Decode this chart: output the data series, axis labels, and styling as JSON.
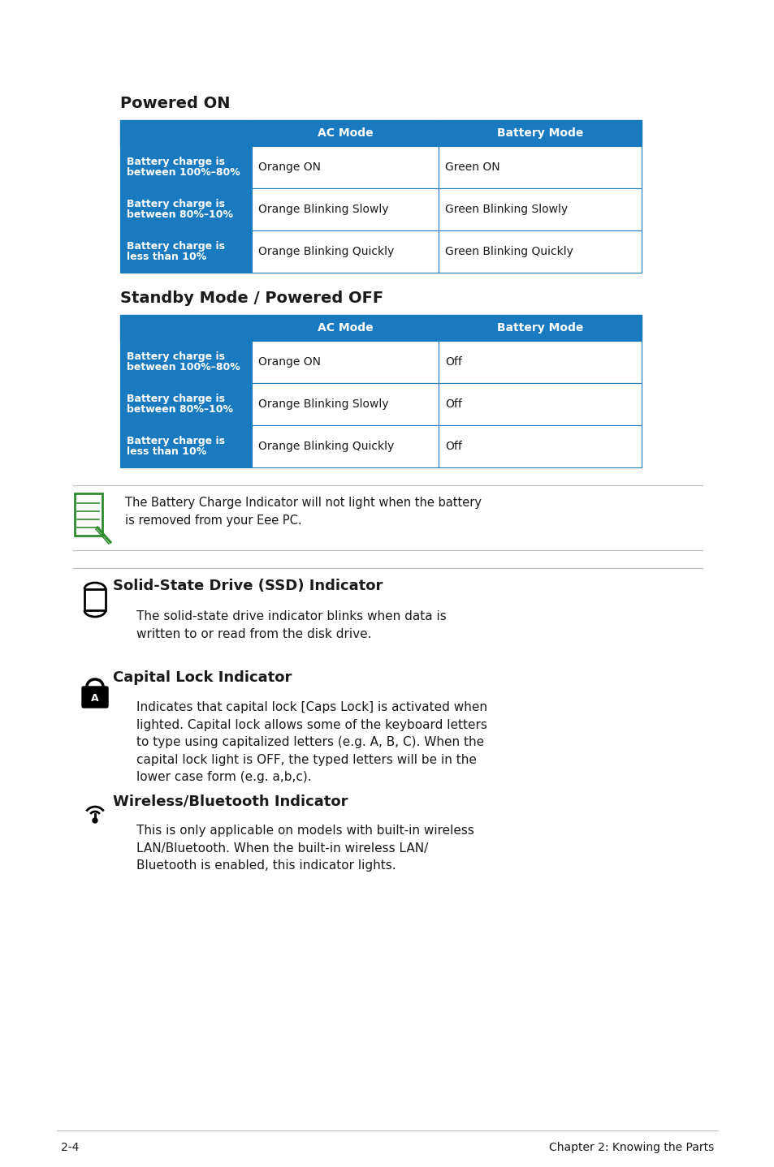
{
  "bg_color": "#ffffff",
  "table_header_bg": "#1a7abf",
  "table_row_bg_blue": "#1a7abf",
  "table_row_bg_white": "#ffffff",
  "table_border_color": "#1a7abf",
  "text_white": "#ffffff",
  "text_dark": "#1a1a1a",
  "section1_title": "Powered ON",
  "section2_title": "Standby Mode / Powered OFF",
  "table1_headers": [
    "",
    "AC Mode",
    "Battery Mode"
  ],
  "table1_rows": [
    [
      "Battery charge is\nbetween 100%–80%",
      "Orange ON",
      "Green ON"
    ],
    [
      "Battery charge is\nbetween 80%–10%",
      "Orange Blinking Slowly",
      "Green Blinking Slowly"
    ],
    [
      "Battery charge is\nless than 10%",
      "Orange Blinking Quickly",
      "Green Blinking Quickly"
    ]
  ],
  "table2_headers": [
    "",
    "AC Mode",
    "Battery Mode"
  ],
  "table2_rows": [
    [
      "Battery charge is\nbetween 100%–80%",
      "Orange ON",
      "Off"
    ],
    [
      "Battery charge is\nbetween 80%–10%",
      "Orange Blinking Slowly",
      "Off"
    ],
    [
      "Battery charge is\nless than 10%",
      "Orange Blinking Quickly",
      "Off"
    ]
  ],
  "note_text": "The Battery Charge Indicator will not light when the battery\nis removed from your Eee PC.",
  "ssd_title": "Solid-State Drive (SSD) Indicator",
  "ssd_text": "The solid-state drive indicator blinks when data is\nwritten to or read from the disk drive.",
  "caps_title": "Capital Lock Indicator",
  "caps_text": "Indicates that capital lock [Caps Lock] is activated when\nlighted. Capital lock allows some of the keyboard letters\nto type using capitalized letters (e.g. A, B, C). When the\ncapital lock light is OFF, the typed letters will be in the\nlower case form (e.g. a,b,c).",
  "wifi_title": "Wireless/Bluetooth Indicator",
  "wifi_text": "This is only applicable on models with built-in wireless\nLAN/Bluetooth. When the built-in wireless LAN/\nBluetooth is enabled, this indicator lights.",
  "footer_left": "2-4",
  "footer_right": "Chapter 2: Knowing the Parts",
  "icon_green": "#2e8b2e",
  "note_line_color": "#bbbbbb",
  "footer_line_color": "#bbbbbb"
}
